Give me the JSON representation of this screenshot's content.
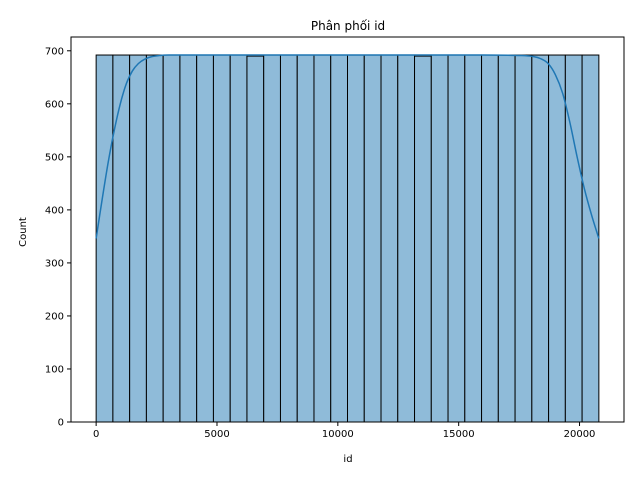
{
  "chart_data": {
    "type": "bar",
    "title": "Phân phối id",
    "xlabel": "id",
    "ylabel": "Count",
    "xlim": [
      -1040,
      21840
    ],
    "ylim": [
      0,
      726
    ],
    "xticks": [
      0,
      5000,
      10000,
      15000,
      20000
    ],
    "yticks": [
      0,
      100,
      200,
      300,
      400,
      500,
      600,
      700
    ],
    "bar_color": "#8fbbd9",
    "bar_edge_color": "#000000",
    "kde_color": "#1f77b4",
    "bins": [
      {
        "x0": 0,
        "x1": 693.3,
        "count": 692
      },
      {
        "x0": 693.3,
        "x1": 1386.7,
        "count": 692
      },
      {
        "x0": 1386.7,
        "x1": 2080,
        "count": 692
      },
      {
        "x0": 2080,
        "x1": 2773.3,
        "count": 692
      },
      {
        "x0": 2773.3,
        "x1": 3466.7,
        "count": 692
      },
      {
        "x0": 3466.7,
        "x1": 4160,
        "count": 692
      },
      {
        "x0": 4160,
        "x1": 4853.3,
        "count": 692
      },
      {
        "x0": 4853.3,
        "x1": 5546.7,
        "count": 692
      },
      {
        "x0": 5546.7,
        "x1": 6240,
        "count": 692
      },
      {
        "x0": 6240,
        "x1": 6933.3,
        "count": 690
      },
      {
        "x0": 6933.3,
        "x1": 7626.7,
        "count": 692
      },
      {
        "x0": 7626.7,
        "x1": 8320,
        "count": 692
      },
      {
        "x0": 8320,
        "x1": 9013.3,
        "count": 692
      },
      {
        "x0": 9013.3,
        "x1": 9706.7,
        "count": 692
      },
      {
        "x0": 9706.7,
        "x1": 10400,
        "count": 692
      },
      {
        "x0": 10400,
        "x1": 11093.3,
        "count": 692
      },
      {
        "x0": 11093.3,
        "x1": 11786.7,
        "count": 692
      },
      {
        "x0": 11786.7,
        "x1": 12480,
        "count": 692
      },
      {
        "x0": 12480,
        "x1": 13173.3,
        "count": 692
      },
      {
        "x0": 13173.3,
        "x1": 13866.7,
        "count": 690
      },
      {
        "x0": 13866.7,
        "x1": 14560,
        "count": 692
      },
      {
        "x0": 14560,
        "x1": 15253.3,
        "count": 692
      },
      {
        "x0": 15253.3,
        "x1": 15946.7,
        "count": 692
      },
      {
        "x0": 15946.7,
        "x1": 16640,
        "count": 692
      },
      {
        "x0": 16640,
        "x1": 17333.3,
        "count": 692
      },
      {
        "x0": 17333.3,
        "x1": 18026.7,
        "count": 692
      },
      {
        "x0": 18026.7,
        "x1": 18720,
        "count": 692
      },
      {
        "x0": 18720,
        "x1": 19413.3,
        "count": 692
      },
      {
        "x0": 19413.3,
        "x1": 20106.7,
        "count": 692
      },
      {
        "x0": 20106.7,
        "x1": 20800,
        "count": 692
      }
    ],
    "kde": {
      "x": [
        0,
        250,
        500,
        750,
        1000,
        1250,
        1500,
        1750,
        2000,
        2300,
        2600,
        3000,
        4000,
        6000,
        8000,
        10000,
        12000,
        14000,
        16000,
        17600,
        18100,
        18400,
        18700,
        19000,
        19300,
        19600,
        19900,
        20200,
        20500,
        20800
      ],
      "y": [
        346,
        420,
        490,
        550,
        600,
        638,
        662,
        676,
        684,
        689,
        691,
        692,
        692,
        692,
        692,
        692,
        692,
        692,
        692,
        691,
        689,
        685,
        676,
        655,
        620,
        565,
        500,
        440,
        390,
        346
      ]
    }
  }
}
